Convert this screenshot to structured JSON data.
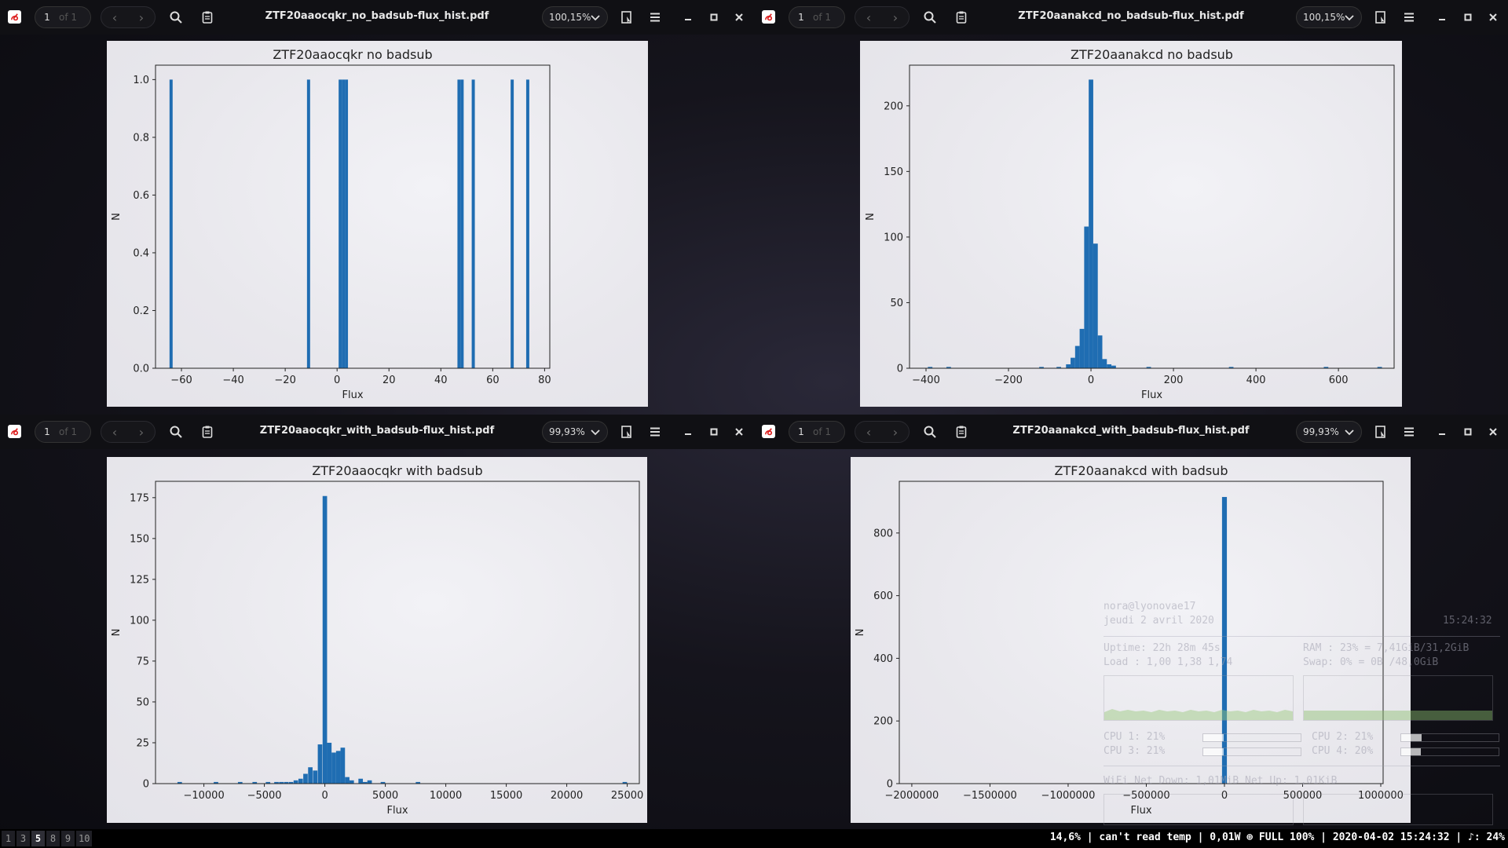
{
  "windows": [
    {
      "id": "tl",
      "page": "1",
      "page_of": "of 1",
      "filename": "ZTF20aaocqkr_no_badsub-flux_hist.pdf",
      "zoom": "100,15%",
      "chart_data": {
        "type": "bar",
        "title": "ZTF20aaocqkr no badsub",
        "xlabel": "Flux",
        "ylabel": "N",
        "xlim": [
          -70,
          82
        ],
        "ylim": [
          0,
          1.05
        ],
        "xticks": [
          -60,
          -40,
          -20,
          0,
          20,
          40,
          60,
          80
        ],
        "xtick_labels": [
          "−60",
          "−40",
          "−20",
          "0",
          "20",
          "40",
          "60",
          "80"
        ],
        "yticks": [
          0,
          0.2,
          0.4,
          0.6,
          0.8,
          1.0
        ],
        "ytick_labels": [
          "0.0",
          "0.2",
          "0.4",
          "0.6",
          "0.8",
          "1.0"
        ],
        "bin_width": 1.2,
        "bars": [
          [
            -64,
            1
          ],
          [
            -11,
            1
          ],
          [
            1.2,
            1
          ],
          [
            2.4,
            1
          ],
          [
            3.6,
            1
          ],
          [
            47,
            1
          ],
          [
            48.2,
            1
          ],
          [
            52.5,
            1
          ],
          [
            67.5,
            1
          ],
          [
            73.5,
            1
          ]
        ]
      }
    },
    {
      "id": "tr",
      "page": "1",
      "page_of": "of 1",
      "filename": "ZTF20aanakcd_no_badsub-flux_hist.pdf",
      "zoom": "100,15%",
      "chart_data": {
        "type": "bar",
        "title": "ZTF20aanakcd no badsub",
        "xlabel": "Flux",
        "ylabel": "N",
        "xlim": [
          -440,
          735
        ],
        "ylim": [
          0,
          231
        ],
        "xticks": [
          -400,
          -200,
          0,
          200,
          400,
          600
        ],
        "xtick_labels": [
          "−400",
          "−200",
          "0",
          "200",
          "400",
          "600"
        ],
        "yticks": [
          0,
          50,
          100,
          150,
          200
        ],
        "ytick_labels": [
          "0",
          "50",
          "100",
          "150",
          "200"
        ],
        "bin_width": 11,
        "bars": [
          [
            -390,
            1
          ],
          [
            -345,
            1
          ],
          [
            -120,
            1
          ],
          [
            -78,
            1
          ],
          [
            -55,
            3
          ],
          [
            -44,
            8
          ],
          [
            -33,
            17
          ],
          [
            -22,
            30
          ],
          [
            -11,
            108
          ],
          [
            0,
            220
          ],
          [
            11,
            95
          ],
          [
            22,
            25
          ],
          [
            33,
            7
          ],
          [
            44,
            3
          ],
          [
            55,
            2
          ],
          [
            140,
            1
          ],
          [
            340,
            1
          ],
          [
            570,
            1
          ],
          [
            700,
            1
          ]
        ]
      }
    },
    {
      "id": "bl",
      "page": "1",
      "page_of": "of 1",
      "filename": "ZTF20aaocqkr_with_badsub-flux_hist.pdf",
      "zoom": "99,93%",
      "chart_data": {
        "type": "bar",
        "title": "ZTF20aaocqkr with badsub",
        "xlabel": "Flux",
        "ylabel": "N",
        "xlim": [
          -14000,
          26000
        ],
        "ylim": [
          0,
          185
        ],
        "xticks": [
          -10000,
          -5000,
          0,
          5000,
          10000,
          15000,
          20000,
          25000
        ],
        "xtick_labels": [
          "−10000",
          "−5000",
          "0",
          "5000",
          "10000",
          "15000",
          "20000",
          "25000"
        ],
        "yticks": [
          0,
          25,
          50,
          75,
          100,
          125,
          150,
          175
        ],
        "ytick_labels": [
          "0",
          "25",
          "50",
          "75",
          "100",
          "125",
          "150",
          "175"
        ],
        "bin_width": 370,
        "bars": [
          [
            -12000,
            1
          ],
          [
            -9000,
            1
          ],
          [
            -7000,
            1
          ],
          [
            -5800,
            1
          ],
          [
            -4700,
            1
          ],
          [
            -4000,
            1
          ],
          [
            -3600,
            1
          ],
          [
            -3200,
            1
          ],
          [
            -2800,
            1
          ],
          [
            -2400,
            2
          ],
          [
            -2000,
            3
          ],
          [
            -1600,
            6
          ],
          [
            -1200,
            10
          ],
          [
            -800,
            8
          ],
          [
            -400,
            24
          ],
          [
            0,
            176
          ],
          [
            370,
            25
          ],
          [
            740,
            19
          ],
          [
            1110,
            20
          ],
          [
            1480,
            22
          ],
          [
            1850,
            4
          ],
          [
            2220,
            2
          ],
          [
            2960,
            3
          ],
          [
            3330,
            1
          ],
          [
            3700,
            2
          ],
          [
            4800,
            1
          ],
          [
            7700,
            1
          ],
          [
            24800,
            1
          ]
        ]
      }
    },
    {
      "id": "br",
      "page": "1",
      "page_of": "of 1",
      "filename": "ZTF20aanakcd_with_badsub-flux_hist.pdf",
      "zoom": "99,93%",
      "chart_data": {
        "type": "bar",
        "title": "ZTF20aanakcd with badsub",
        "xlabel": "Flux",
        "ylabel": "N",
        "xlim": [
          -2080000,
          1015000
        ],
        "ylim": [
          0,
          965
        ],
        "xticks": [
          -2000000,
          -1500000,
          -1000000,
          -500000,
          0,
          500000,
          1000000
        ],
        "xtick_labels": [
          "−2000000",
          "−1500000",
          "−1000000",
          "−500000",
          "0",
          "500000",
          "1000000"
        ],
        "yticks": [
          0,
          200,
          400,
          600,
          800
        ],
        "ytick_labels": [
          "0",
          "200",
          "400",
          "600",
          "800"
        ],
        "bin_width": 31000,
        "bars": [
          [
            0,
            915
          ]
        ]
      }
    }
  ],
  "conky": {
    "user": "nora@lyonovae17",
    "date": "jeudi  2 avril 2020",
    "time": "15:24:32",
    "uptime": "Uptime: 22h 28m 45s",
    "load": "Load  : 1,00 1,38 1,74",
    "ram": "RAM : 23% = 7,41GiB/31,2GiB",
    "swap": "Swap: 0%  = 0B     /48,0GiB",
    "cpu1": "CPU 1: 21%",
    "cpu2": "CPU 2: 21%",
    "cpu3": "CPU 3: 21%",
    "cpu4": "CPU 4: 20%",
    "cpu1_level": 0.21,
    "cpu2_level": 0.21,
    "cpu3_level": 0.21,
    "cpu4_level": 0.2,
    "net": "WiFi Net Down: 1,01MiB Net Up: 1,01KiB"
  },
  "statusbar": {
    "workspaces": [
      "1",
      "3",
      "5",
      "8",
      "9",
      "10"
    ],
    "active_workspace": "5",
    "status_text": "14,6% | can't read temp | 0,01W ⊕ FULL 100% | 2020-04-02 15:24:32 | ♪: 24%"
  }
}
